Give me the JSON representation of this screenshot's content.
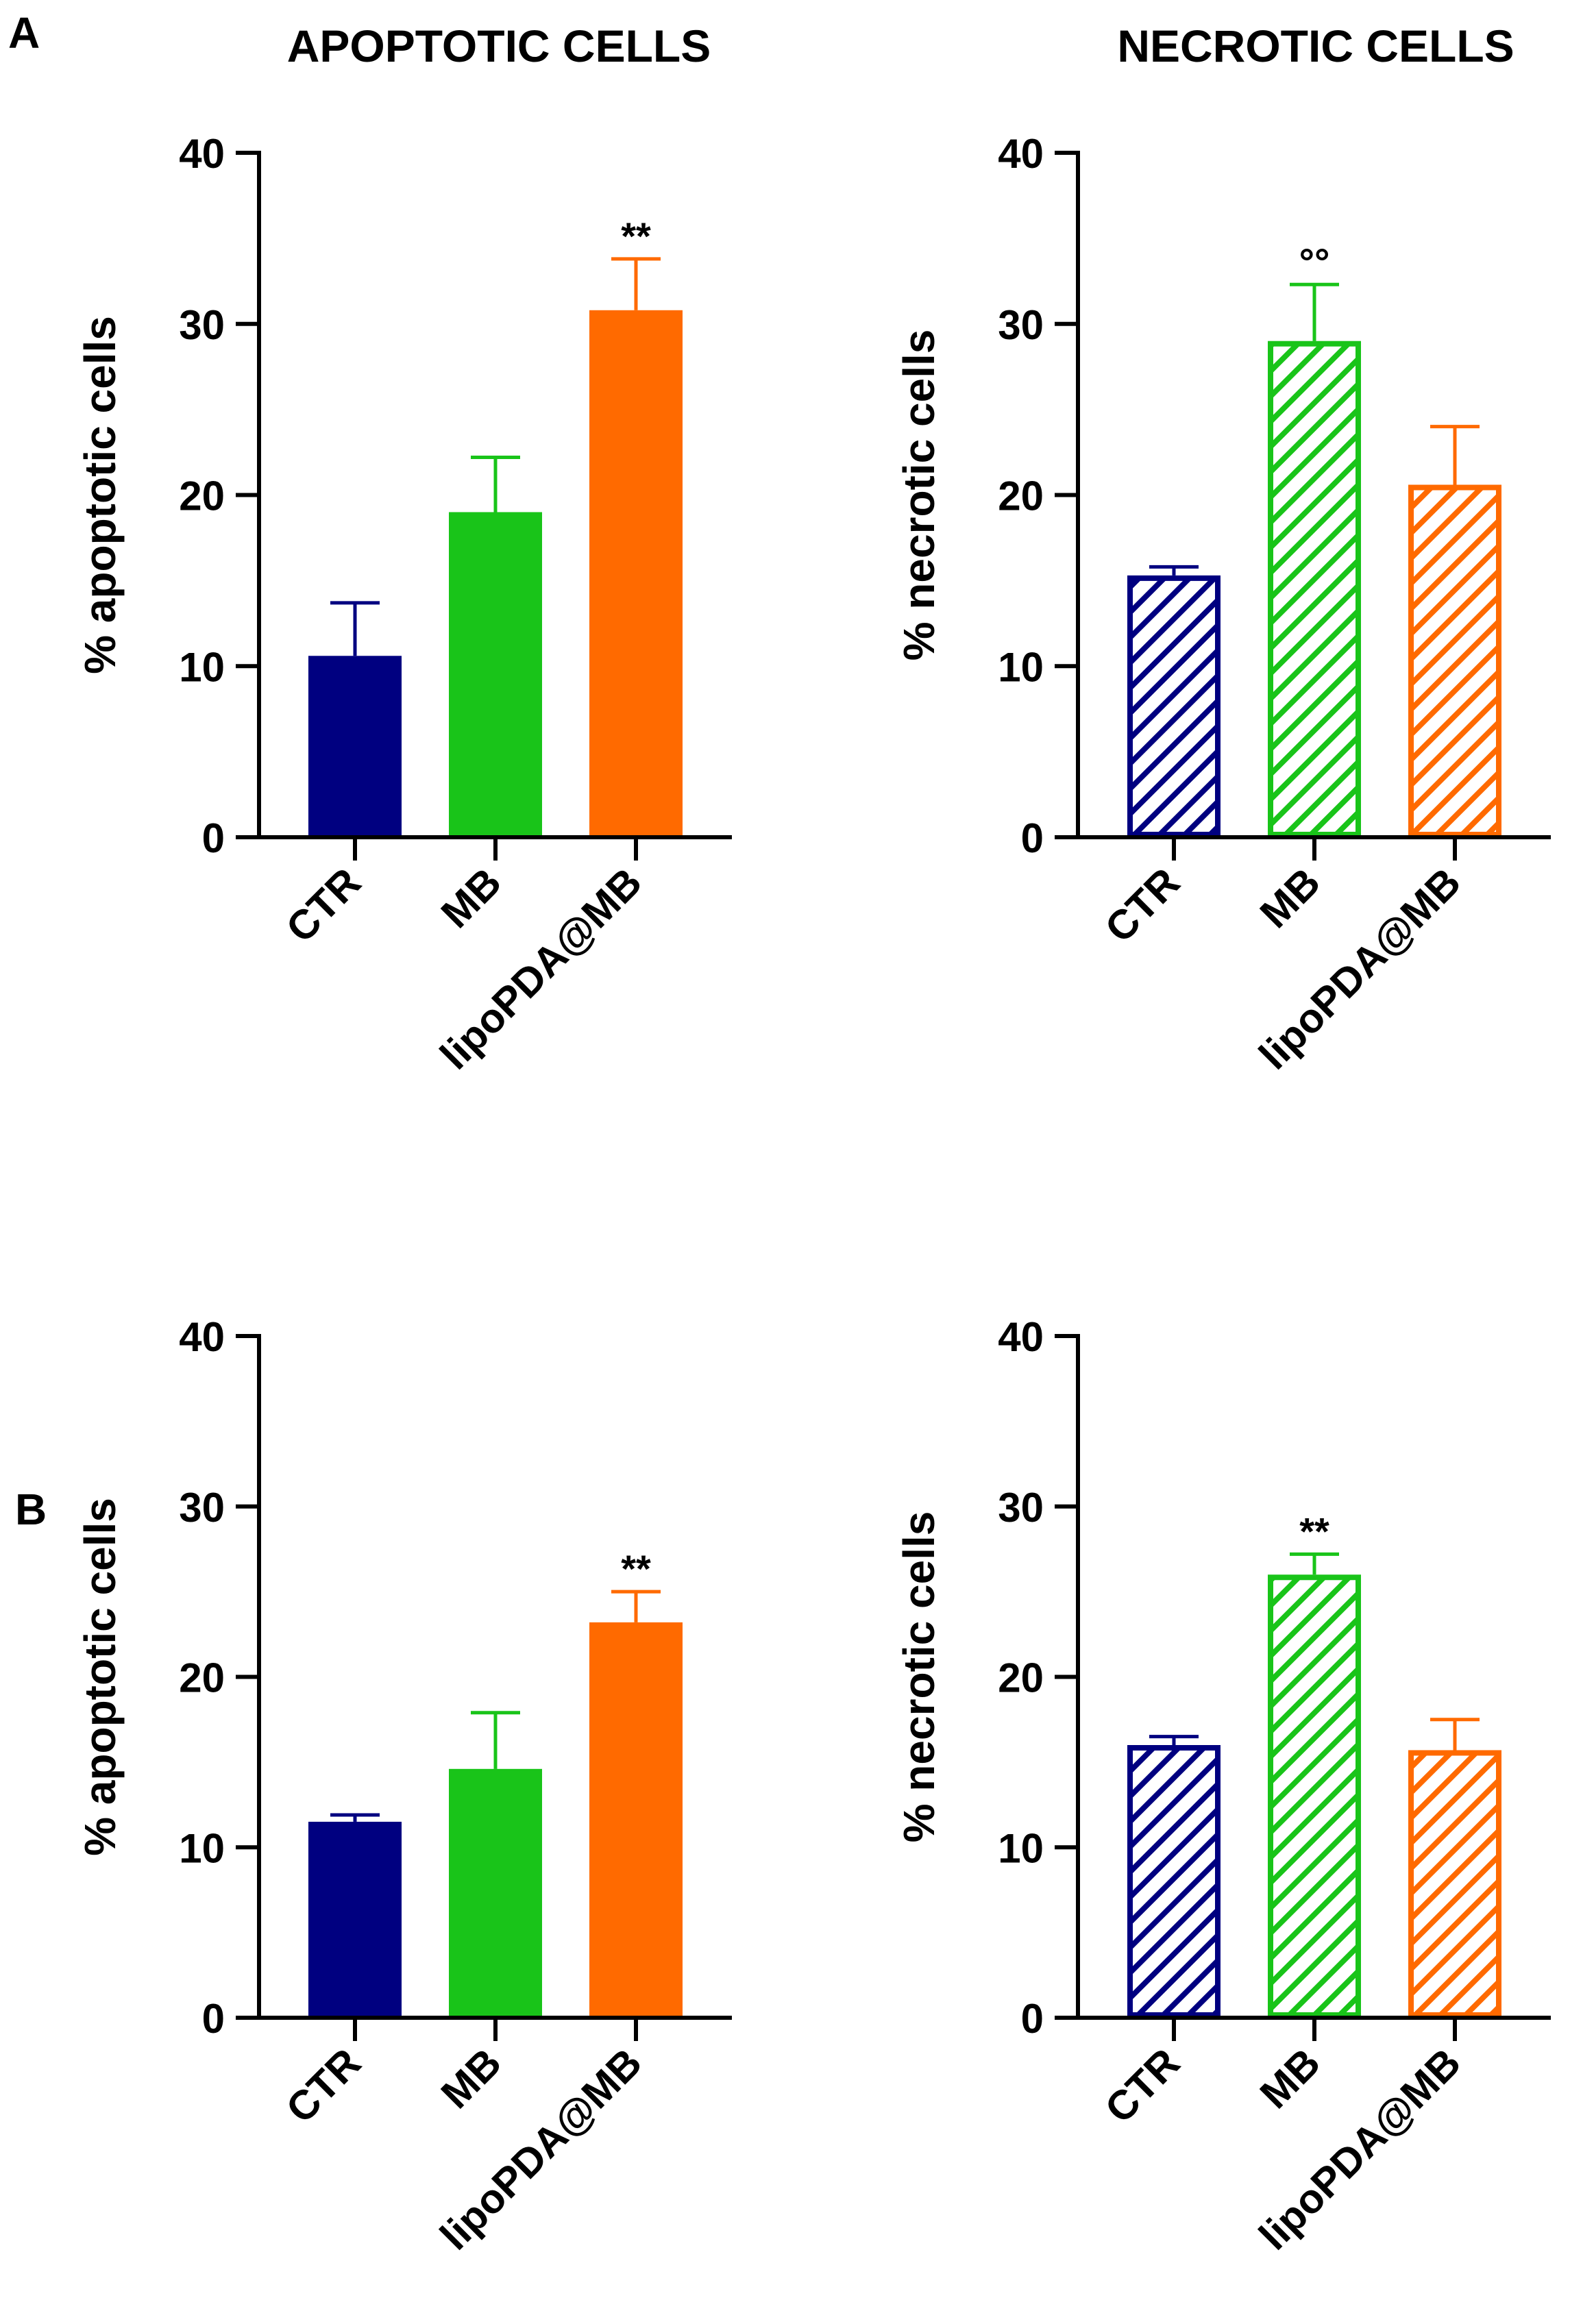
{
  "panel_labels": [
    "A",
    "B"
  ],
  "column_titles": [
    "APOPTOTIC CELLS",
    "NECROTIC CELLS"
  ],
  "colors": {
    "ctr": "#000080",
    "mb": "#19c419",
    "lipo": "#ff6a00",
    "axis": "#000000"
  },
  "chart_data": [
    {
      "type": "bar",
      "panel": "A",
      "title": "APOPTOTIC CELLS",
      "style": "solid",
      "ylabel": "% apoptotic cells",
      "ylim": [
        0,
        40
      ],
      "yticks": [
        0,
        10,
        20,
        30,
        40
      ],
      "categories": [
        "CTR",
        "MB",
        "lipoPDA@MB"
      ],
      "values": [
        10.6,
        19.0,
        30.8
      ],
      "errors": [
        3.1,
        3.2,
        3.0
      ],
      "annotations": [
        "",
        "",
        "**"
      ]
    },
    {
      "type": "bar",
      "panel": "A",
      "title": "NECROTIC CELLS",
      "style": "hatched",
      "ylabel": "% necrotic cells",
      "ylim": [
        0,
        40
      ],
      "yticks": [
        0,
        10,
        20,
        30,
        40
      ],
      "categories": [
        "CTR",
        "MB",
        "lipoPDA@MB"
      ],
      "values": [
        15.3,
        29.0,
        20.6
      ],
      "errors": [
        0.5,
        3.3,
        3.4
      ],
      "annotations": [
        "",
        "°°",
        ""
      ]
    },
    {
      "type": "bar",
      "panel": "B",
      "title": "",
      "style": "solid",
      "ylabel": "% apoptotic cells",
      "ylim": [
        0,
        40
      ],
      "yticks": [
        0,
        10,
        20,
        30,
        40
      ],
      "categories": [
        "CTR",
        "MB",
        "lipoPDA@MB"
      ],
      "values": [
        11.5,
        14.6,
        23.2
      ],
      "errors": [
        0.4,
        3.3,
        1.8
      ],
      "annotations": [
        "",
        "",
        "**"
      ]
    },
    {
      "type": "bar",
      "panel": "B",
      "title": "",
      "style": "hatched",
      "ylabel": "% necrotic cells",
      "ylim": [
        0,
        40
      ],
      "yticks": [
        0,
        10,
        20,
        30,
        40
      ],
      "categories": [
        "CTR",
        "MB",
        "lipoPDA@MB"
      ],
      "values": [
        16.0,
        26.0,
        15.7
      ],
      "errors": [
        0.5,
        1.2,
        1.8
      ],
      "annotations": [
        "",
        "**",
        ""
      ]
    }
  ]
}
